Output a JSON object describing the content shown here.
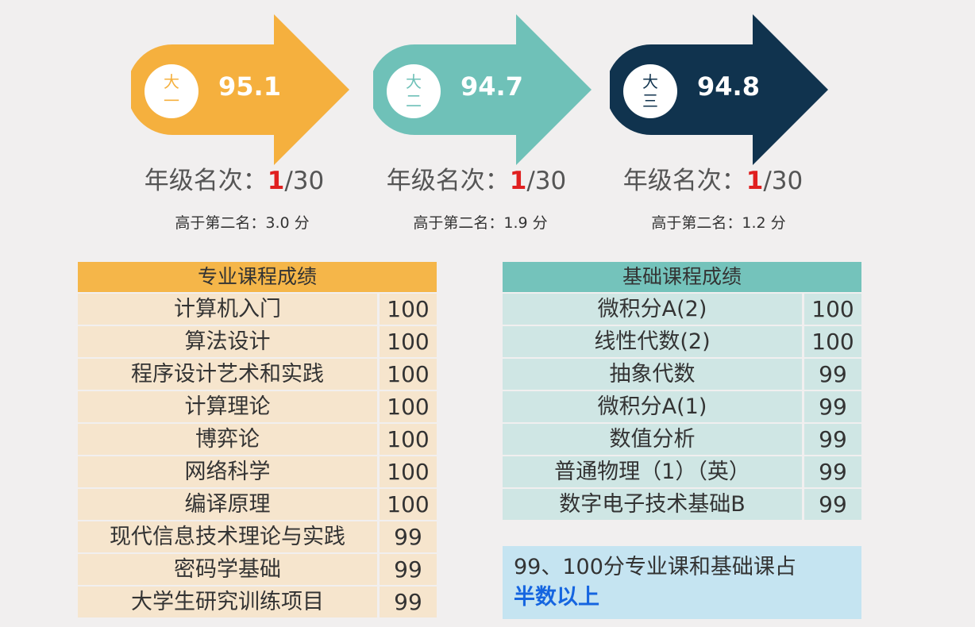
{
  "years": [
    {
      "label_top": "大",
      "label_bottom": "一",
      "score": "95.1",
      "rank_prefix": "年级名次：",
      "rank_num": "1",
      "rank_total": "/30",
      "gap": "高于第二名：3.0 分",
      "color": "#f5b03e"
    },
    {
      "label_top": "大",
      "label_bottom": "二",
      "score": "94.7",
      "rank_prefix": "年级名次：",
      "rank_num": "1",
      "rank_total": "/30",
      "gap": "高于第二名：1.9 分",
      "color": "#6fc1b8"
    },
    {
      "label_top": "大",
      "label_bottom": "三",
      "score": "94.8",
      "rank_prefix": "年级名次：",
      "rank_num": "1",
      "rank_total": "/30",
      "gap": "高于第二名：1.2 分",
      "color": "#10334e"
    }
  ],
  "major": {
    "title": "专业课程成绩",
    "rows": [
      {
        "name": "计算机入门",
        "score": "100"
      },
      {
        "name": "算法设计",
        "score": "100"
      },
      {
        "name": "程序设计艺术和实践",
        "score": "100"
      },
      {
        "name": "计算理论",
        "score": "100"
      },
      {
        "name": "博弈论",
        "score": "100"
      },
      {
        "name": "网络科学",
        "score": "100"
      },
      {
        "name": "编译原理",
        "score": "100"
      },
      {
        "name": "现代信息技术理论与实践",
        "score": "99"
      },
      {
        "name": "密码学基础",
        "score": "99"
      },
      {
        "name": "大学生研究训练项目",
        "score": "99"
      }
    ]
  },
  "basic": {
    "title": "基础课程成绩",
    "rows": [
      {
        "name": "微积分A(2)",
        "score": "100"
      },
      {
        "name": "线性代数(2)",
        "score": "100"
      },
      {
        "name": "抽象代数",
        "score": "99"
      },
      {
        "name": "微积分A(1)",
        "score": "99"
      },
      {
        "name": "数值分析",
        "score": "99"
      },
      {
        "name": "普通物理（1）（英）",
        "score": "99"
      },
      {
        "name": "数字电子技术基础B",
        "score": "99"
      }
    ]
  },
  "note": {
    "text": "99、100分专业课和基础课占",
    "highlight": "半数以上"
  }
}
